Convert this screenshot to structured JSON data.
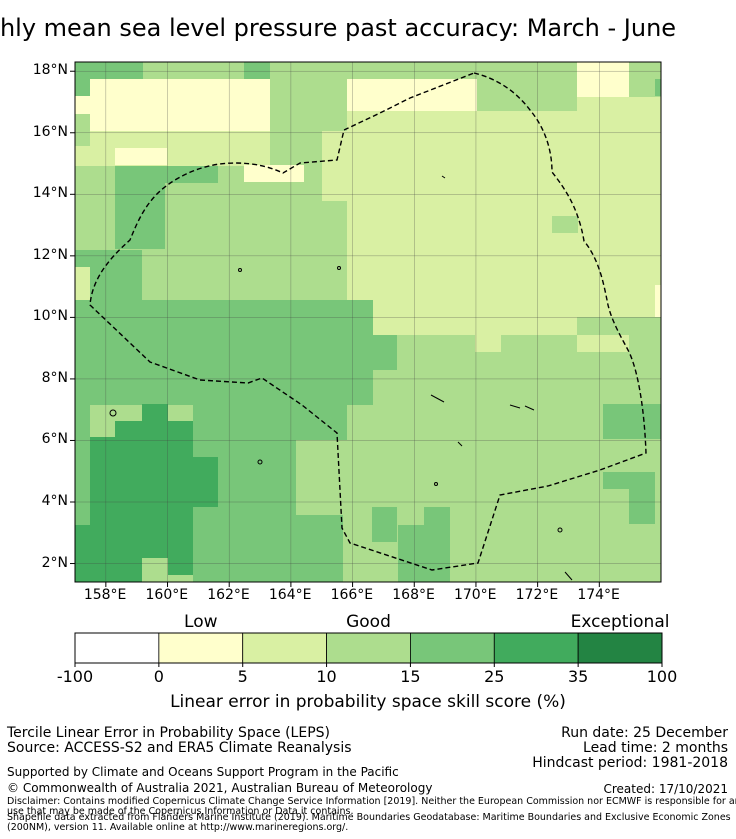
{
  "title": "Monthly mean sea level pressure past accuracy: March - June",
  "map": {
    "lat_ticks": [
      "18°N",
      "16°N",
      "14°N",
      "12°N",
      "10°N",
      "8°N",
      "6°N",
      "4°N",
      "2°N"
    ],
    "lon_ticks": [
      "158°E",
      "160°E",
      "162°E",
      "164°E",
      "166°E",
      "168°E",
      "170°E",
      "172°E",
      "174°E"
    ],
    "lon_range": [
      157,
      176
    ],
    "lat_range": [
      1.4,
      18.3
    ],
    "boundary_name": "Maritime boundary (EEZ)"
  },
  "legend": {
    "categories": [
      {
        "label": "Low",
        "between": [
          0,
          5
        ]
      },
      {
        "label": "Good",
        "between": [
          10,
          15
        ]
      },
      {
        "label": "Exceptional",
        "between": [
          35,
          100
        ]
      }
    ],
    "bins": [
      {
        "from": -100,
        "to": 0,
        "color": "#ffffff"
      },
      {
        "from": 0,
        "to": 5,
        "color": "#ffffcc"
      },
      {
        "from": 5,
        "to": 10,
        "color": "#d9f0a3"
      },
      {
        "from": 10,
        "to": 15,
        "color": "#addd8e"
      },
      {
        "from": 15,
        "to": 25,
        "color": "#78c679"
      },
      {
        "from": 25,
        "to": 35,
        "color": "#41ab5d"
      },
      {
        "from": 35,
        "to": 100,
        "color": "#238443"
      }
    ],
    "tick_labels": [
      "-100",
      "0",
      "5",
      "10",
      "15",
      "25",
      "35",
      "100"
    ],
    "axis_label": "Linear error in probability space skill score (%)"
  },
  "footer": {
    "line1": "Tercile Linear Error in Probability Space (LEPS)",
    "line2": "Source: ACCESS-S2 and ERA5 Climate Reanalysis",
    "supported": "Supported by Climate and Oceans Support Program in the Pacific",
    "copyright": "© Commonwealth of Australia 2021, Australian Bureau of Meteorology",
    "run_date": "Run date: 25 December",
    "lead_time": "Lead time: 2 months",
    "hindcast": "Hindcast period: 1981-2018",
    "created": "Created: 17/10/2021",
    "disclaimer1": "Disclaimer: Contains modified Copernicus Climate Change Service Information [2019]. Neither the European Commission nor ECMWF is responsible for any",
    "disclaimer2": "use that may be made of the Copernicus Information or Data it contains.",
    "shapefile1": "Shapefile data extracted from Flanders Marine Institute (2019). Maritime Boundaries Geodatabase: Maritime Boundaries and Exclusive Economic Zones",
    "shapefile2": "(200NM), version 11. Available online at http://www.marineregions.org/."
  },
  "colors": {
    "c0": "#ffffcc",
    "c1": "#d9f0a3",
    "c2": "#addd8e",
    "c3": "#78c679",
    "c4": "#41ab5d",
    "c5": "#238443"
  }
}
